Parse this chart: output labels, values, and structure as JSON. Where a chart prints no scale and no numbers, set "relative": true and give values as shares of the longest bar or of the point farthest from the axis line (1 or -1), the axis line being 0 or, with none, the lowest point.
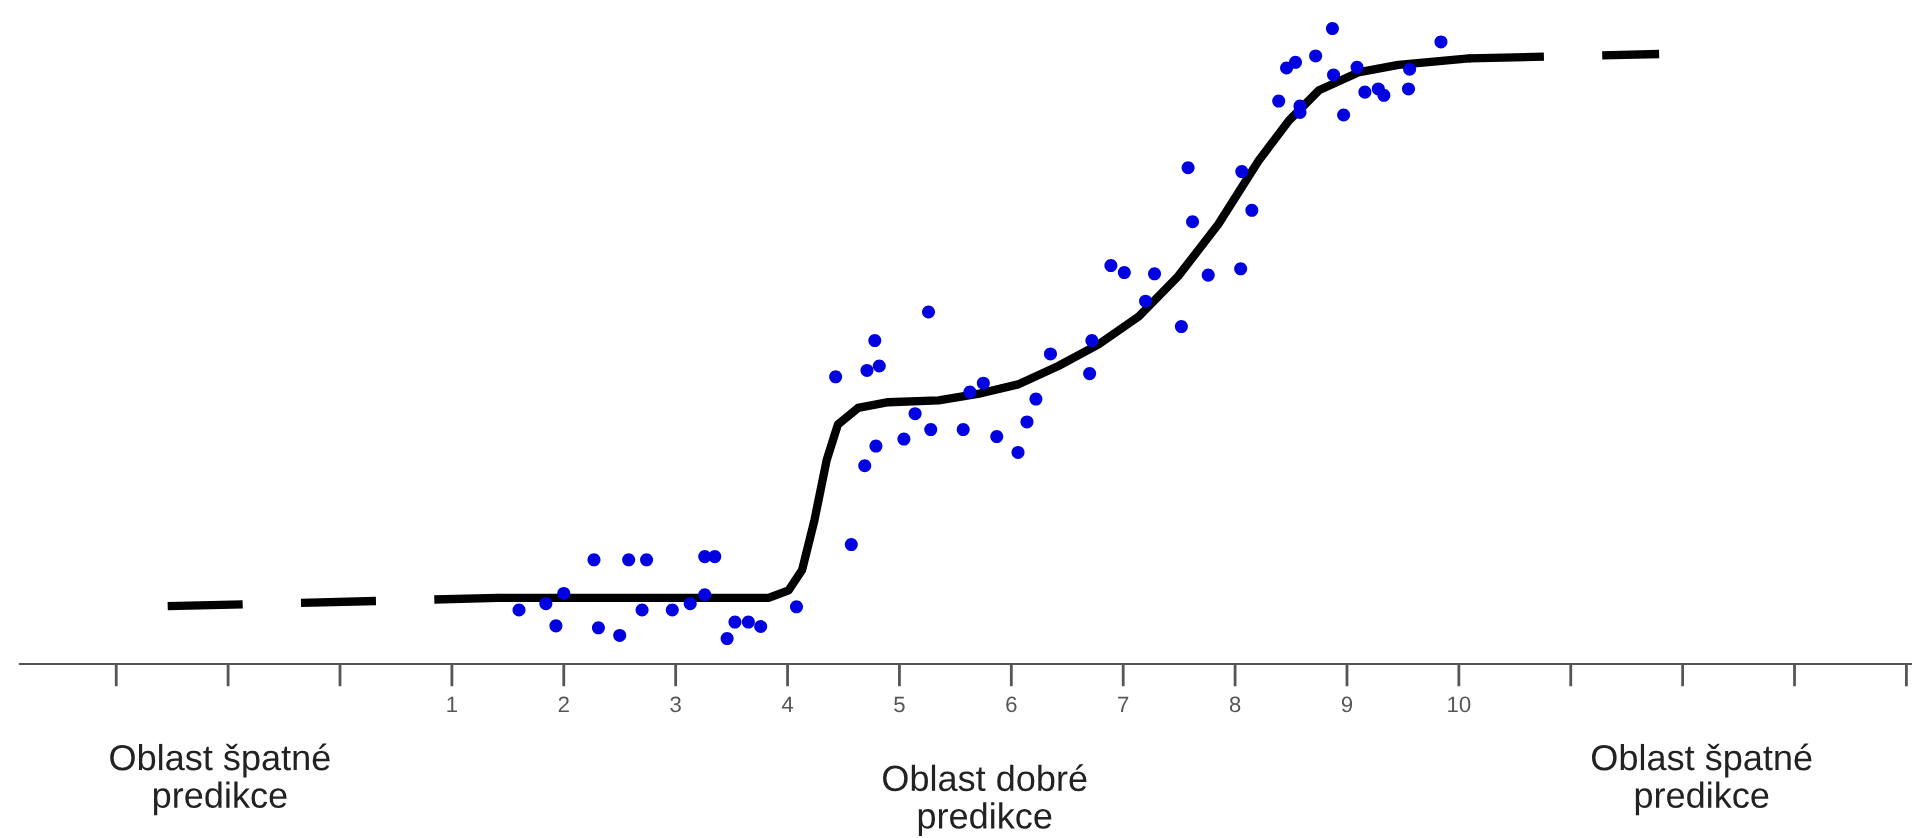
{
  "chart_data": {
    "type": "scatter",
    "relative": true,
    "tick_labels": "x",
    "grid": false,
    "legend": false,
    "xlim": [
      -2.86,
      14.05
    ],
    "xticks": [
      {
        "value": -2,
        "label": null
      },
      {
        "value": -1,
        "label": null
      },
      {
        "value": 0,
        "label": null
      },
      1,
      2,
      3,
      4,
      5,
      6,
      7,
      8,
      9,
      10,
      {
        "value": 11,
        "label": null
      },
      {
        "value": 12,
        "label": null
      },
      {
        "value": 13,
        "label": null
      },
      {
        "value": 14,
        "label": null
      }
    ],
    "annotations": [
      "Oblast špatné\npredikce",
      "Oblast dobré\npredikce",
      "Oblast špatné\npredikce"
    ],
    "series": [
      {
        "type": "line",
        "color": "#000000",
        "line_style": "dashed",
        "marker": "none",
        "x": [
          -1.54,
          1.41
        ],
        "values": [
          0.091,
          0.104
        ]
      },
      {
        "type": "line",
        "color": "#000000",
        "line_style": "solid",
        "marker": "none",
        "x": [
          1.41,
          2.31,
          3.2,
          3.83,
          4.01,
          4.13,
          4.24,
          4.35,
          4.45,
          4.63,
          4.9,
          5.35,
          5.7,
          6.06,
          6.42,
          6.78,
          7.14,
          7.49,
          7.85,
          8.21,
          8.48,
          8.75,
          9.1,
          9.46,
          10.09
        ],
        "values": [
          0.104,
          0.104,
          0.104,
          0.104,
          0.116,
          0.148,
          0.226,
          0.321,
          0.377,
          0.403,
          0.412,
          0.415,
          0.425,
          0.44,
          0.469,
          0.503,
          0.547,
          0.61,
          0.692,
          0.792,
          0.855,
          0.903,
          0.931,
          0.943,
          0.953
        ]
      },
      {
        "type": "line",
        "color": "#000000",
        "line_style": "dashed",
        "marker": "none",
        "x": [
          10.09,
          11.79
        ],
        "values": [
          0.953,
          0.96
        ]
      },
      {
        "color": "#0000e0",
        "marker": "circle",
        "x": [
          1.6,
          1.84,
          1.93,
          2.0,
          2.27,
          2.31,
          2.5,
          2.58,
          2.7,
          2.74,
          2.97,
          3.13,
          3.26,
          3.26,
          3.35,
          3.46,
          3.53,
          3.65,
          3.76,
          4.08,
          4.57,
          4.43,
          4.71,
          4.82,
          4.78,
          4.69,
          4.79,
          5.04,
          5.14,
          5.28,
          5.26,
          5.57,
          5.63,
          5.75,
          5.87,
          6.06,
          6.14,
          6.22,
          6.35,
          6.7,
          6.72,
          6.89,
          7.01,
          7.2,
          7.28,
          7.52,
          7.58,
          7.62,
          7.76,
          8.05,
          8.06,
          8.15,
          8.39,
          8.46,
          8.54,
          8.58,
          8.58,
          8.72,
          8.87,
          8.88,
          8.97,
          9.09,
          9.16,
          9.28,
          9.33,
          9.55,
          9.56,
          9.84
        ],
        "values": [
          0.085,
          0.095,
          0.06,
          0.111,
          0.164,
          0.057,
          0.045,
          0.164,
          0.085,
          0.164,
          0.085,
          0.095,
          0.109,
          0.169,
          0.169,
          0.04,
          0.066,
          0.066,
          0.059,
          0.09,
          0.188,
          0.452,
          0.462,
          0.469,
          0.509,
          0.312,
          0.343,
          0.354,
          0.394,
          0.369,
          0.554,
          0.369,
          0.428,
          0.442,
          0.358,
          0.333,
          0.381,
          0.417,
          0.488,
          0.457,
          0.509,
          0.627,
          0.616,
          0.571,
          0.614,
          0.531,
          0.781,
          0.696,
          0.612,
          0.622,
          0.775,
          0.714,
          0.886,
          0.938,
          0.947,
          0.878,
          0.868,
          0.957,
          1.0,
          0.927,
          0.864,
          0.939,
          0.9,
          0.905,
          0.895,
          0.905,
          0.936,
          0.979
        ]
      }
    ]
  }
}
